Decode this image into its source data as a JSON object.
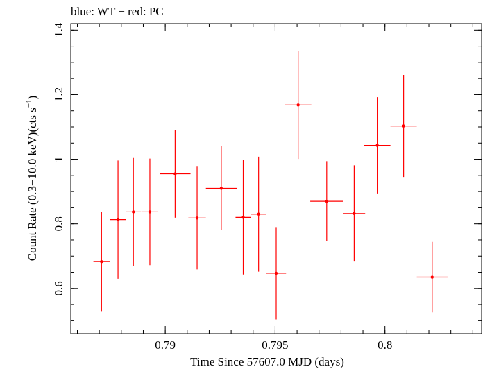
{
  "chart_data": {
    "type": "scatter",
    "title": "blue: WT − red: PC",
    "xlabel": "Time Since 57607.0 MJD (days)",
    "ylabel_main": "Count Rate (0.3−10.0 keV)(cts s",
    "ylabel_sup": "−1",
    "ylabel_close": ")",
    "xlim": [
      0.7857,
      0.8044
    ],
    "ylim": [
      0.46,
      1.42
    ],
    "x_major_ticks": [
      0.79,
      0.795,
      0.8
    ],
    "x_tick_labels": [
      "0.79",
      "0.795",
      "0.8"
    ],
    "x_minor_step": 0.001,
    "y_major_ticks": [
      0.6,
      0.8,
      1.0,
      1.2,
      1.4
    ],
    "y_tick_labels": [
      "0.6",
      "0.8",
      "1",
      "1.2",
      "1.4"
    ],
    "y_minor_step": 0.05,
    "grid": false,
    "series": [
      {
        "name": "PC",
        "color": "#ff0000",
        "points": [
          {
            "x": 0.7871,
            "xerr": 0.00037,
            "y": 0.683,
            "yerr": 0.155
          },
          {
            "x": 0.78785,
            "xerr": 0.00035,
            "y": 0.813,
            "yerr": 0.183
          },
          {
            "x": 0.78855,
            "xerr": 0.00035,
            "y": 0.837,
            "yerr": 0.167
          },
          {
            "x": 0.7893,
            "xerr": 0.00037,
            "y": 0.837,
            "yerr": 0.165
          },
          {
            "x": 0.79045,
            "xerr": 0.0007,
            "y": 0.955,
            "yerr": 0.136
          },
          {
            "x": 0.79145,
            "xerr": 0.0004,
            "y": 0.818,
            "yerr": 0.159
          },
          {
            "x": 0.79255,
            "xerr": 0.0007,
            "y": 0.91,
            "yerr": 0.13
          },
          {
            "x": 0.79355,
            "xerr": 0.00035,
            "y": 0.82,
            "yerr": 0.177
          },
          {
            "x": 0.79425,
            "xerr": 0.00035,
            "y": 0.83,
            "yerr": 0.178
          },
          {
            "x": 0.79505,
            "xerr": 0.00045,
            "y": 0.647,
            "yerr": 0.143
          },
          {
            "x": 0.79605,
            "xerr": 0.0006,
            "y": 1.168,
            "yerr": 0.167
          },
          {
            "x": 0.79735,
            "xerr": 0.00075,
            "y": 0.87,
            "yerr": 0.124
          },
          {
            "x": 0.7986,
            "xerr": 0.0005,
            "y": 0.832,
            "yerr": 0.149
          },
          {
            "x": 0.79965,
            "xerr": 0.0006,
            "y": 1.043,
            "yerr": 0.149
          },
          {
            "x": 0.80085,
            "xerr": 0.0006,
            "y": 1.103,
            "yerr": 0.158
          },
          {
            "x": 0.80215,
            "xerr": 0.0007,
            "y": 0.635,
            "yerr": 0.109
          }
        ]
      }
    ]
  }
}
